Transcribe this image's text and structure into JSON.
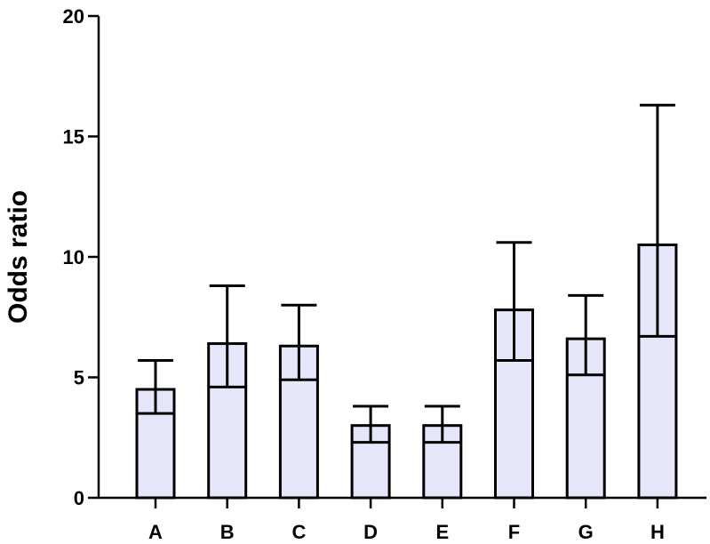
{
  "chart_data": {
    "type": "bar",
    "title": "",
    "xlabel": "",
    "ylabel": "Odds ratio",
    "ylim": [
      0,
      20
    ],
    "yticks": [
      0,
      5,
      10,
      15,
      20
    ],
    "categories": [
      "A",
      "B",
      "C",
      "D",
      "E",
      "F",
      "G",
      "H"
    ],
    "values": [
      4.5,
      6.4,
      6.3,
      3.0,
      3.0,
      7.8,
      6.6,
      10.5
    ],
    "error_low": [
      3.5,
      4.6,
      4.9,
      2.3,
      2.3,
      5.7,
      5.1,
      6.7
    ],
    "error_high": [
      5.7,
      8.8,
      8.0,
      3.8,
      3.8,
      10.6,
      8.4,
      16.3
    ],
    "grid": false,
    "bar_color": "#e6e6fa",
    "edge_color": "#000000"
  }
}
